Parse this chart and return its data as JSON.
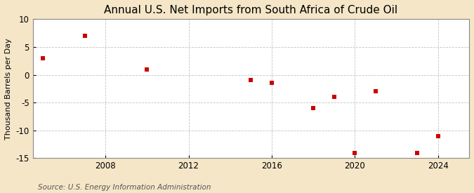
{
  "title": "Annual U.S. Net Imports from South Africa of Crude Oil",
  "ylabel": "Thousand Barrels per Day",
  "source": "Source: U.S. Energy Information Administration",
  "background_color": "#f5e6c8",
  "plot_background_color": "#ffffff",
  "marker_color": "#cc0000",
  "years": [
    2005,
    2007,
    2010,
    2015,
    2016,
    2018,
    2019,
    2020,
    2021,
    2023,
    2024
  ],
  "values": [
    3,
    7,
    1,
    -1,
    -1.5,
    -6,
    -4,
    -14,
    -3,
    -14,
    -11
  ],
  "ylim": [
    -15,
    10
  ],
  "yticks": [
    -15,
    -10,
    -5,
    0,
    5,
    10
  ],
  "xlim": [
    2004.5,
    2025.5
  ],
  "xticks": [
    2008,
    2012,
    2016,
    2020,
    2024
  ],
  "grid_color": "#aaaaaa",
  "title_fontsize": 11,
  "label_fontsize": 8,
  "tick_fontsize": 8.5,
  "source_fontsize": 7.5,
  "marker_size": 4
}
